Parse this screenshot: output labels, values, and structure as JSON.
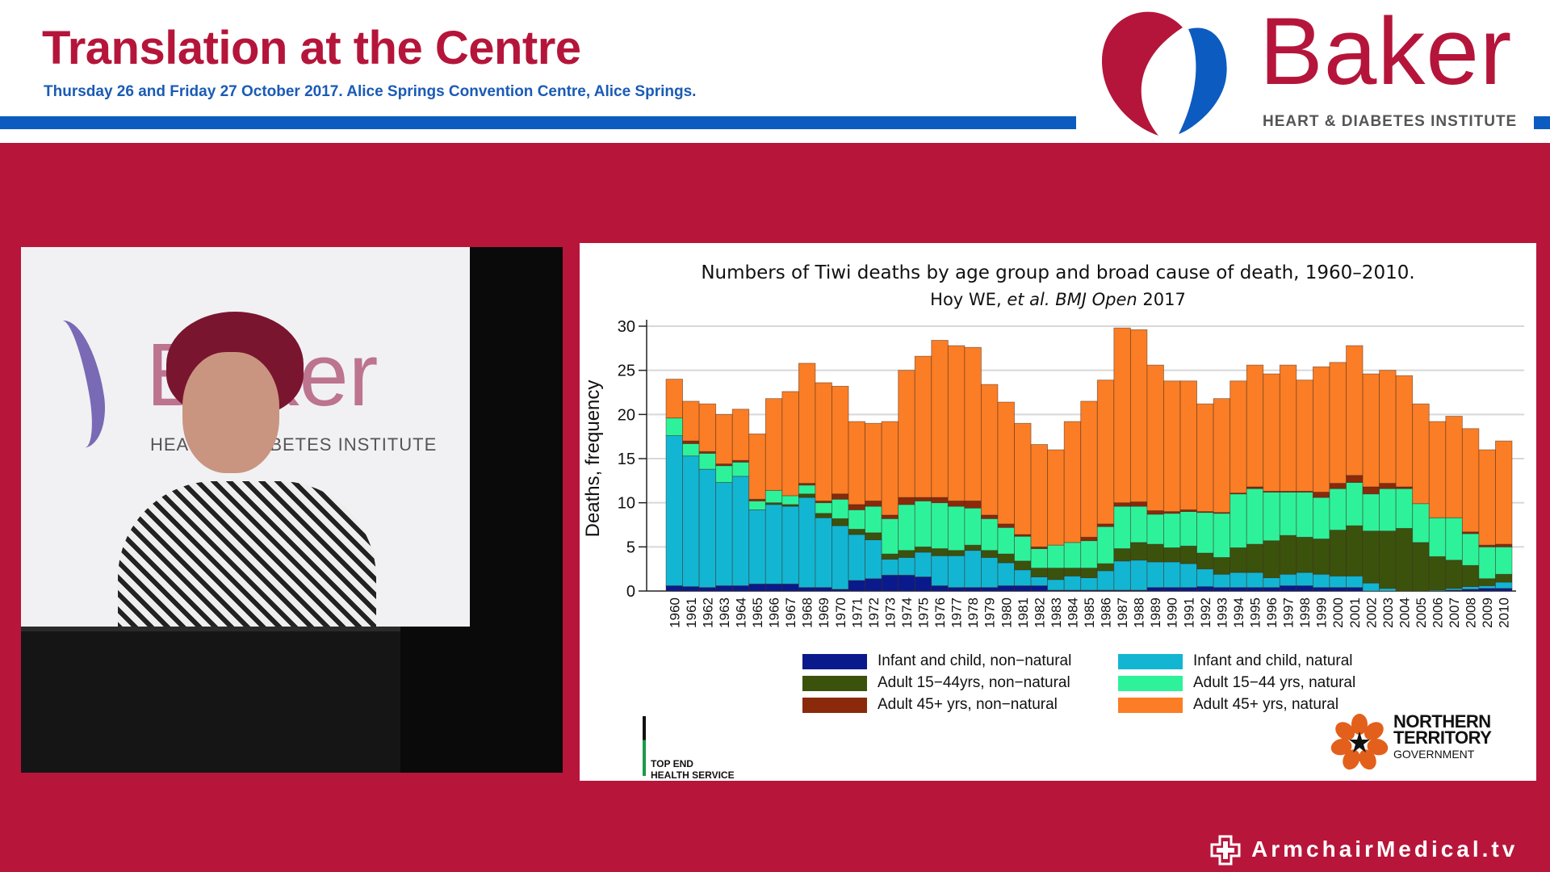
{
  "header": {
    "title": "Translation at the Centre",
    "subtitle": "Thursday 26 and Friday 27 October 2017. Alice Springs Convention Centre, Alice Springs.",
    "logo_word": "Baker",
    "logo_sub": "HEART & DIABETES INSTITUTE"
  },
  "colors": {
    "brand_red": "#b8153a",
    "brand_blue": "#0c5bc0"
  },
  "video": {
    "banner_word": "Baker",
    "banner_sub": "HEART & DIABETES INSTITUTE"
  },
  "slide": {
    "topend_logo": "TOP END\nHEALTH SERVICE",
    "nt_logo": {
      "line1": "NORTHERN",
      "line2": "TERRITORY",
      "line3": "GOVERNMENT"
    }
  },
  "footer": {
    "brand": "ArmchairMedical.tv",
    "icon": "medical-cross-icon"
  },
  "chart_data": {
    "type": "bar",
    "stacked": true,
    "title": "Numbers of Tiwi deaths by age group and broad cause of death, 1960–2010.",
    "subtitle_plain": "Hoy WE, ",
    "subtitle_italic": "et al. BMJ Open",
    "subtitle_year": " 2017",
    "xlabel": "",
    "ylabel": "Deaths, frequency",
    "ylim": [
      0,
      30
    ],
    "yticks": [
      0,
      5,
      10,
      15,
      20,
      25,
      30
    ],
    "grid": true,
    "legend_placement": "bottom",
    "categories": [
      "1960",
      "1961",
      "1962",
      "1963",
      "1964",
      "1965",
      "1966",
      "1967",
      "1968",
      "1969",
      "1970",
      "1971",
      "1972",
      "1973",
      "1974",
      "1975",
      "1976",
      "1977",
      "1978",
      "1979",
      "1980",
      "1981",
      "1982",
      "1983",
      "1984",
      "1985",
      "1986",
      "1987",
      "1988",
      "1989",
      "1990",
      "1991",
      "1992",
      "1993",
      "1994",
      "1995",
      "1996",
      "1997",
      "1998",
      "1999",
      "2000",
      "2001",
      "2002",
      "2003",
      "2004",
      "2005",
      "2006",
      "2007",
      "2008",
      "2009",
      "2010"
    ],
    "series": [
      {
        "name": "Infant and child, non−natural",
        "color": "#0a1a8c",
        "values": [
          0.6,
          0.5,
          0.4,
          0.6,
          0.6,
          0.8,
          0.8,
          0.8,
          0.4,
          0.4,
          0.2,
          1.2,
          1.4,
          1.8,
          1.8,
          1.6,
          0.6,
          0.4,
          0.4,
          0.4,
          0.6,
          0.6,
          0.6,
          0.1,
          0.1,
          0.1,
          0.1,
          0.1,
          0.1,
          0.4,
          0.4,
          0.4,
          0.5,
          0.4,
          0.4,
          0.4,
          0.4,
          0.6,
          0.6,
          0.4,
          0.4,
          0.4,
          0,
          0,
          0,
          0,
          0,
          0.1,
          0.2,
          0.3,
          0.3
        ]
      },
      {
        "name": "Infant and child, natural",
        "color": "#12b6d3",
        "values": [
          17.0,
          14.8,
          13.4,
          11.7,
          12.4,
          8.4,
          9.0,
          8.8,
          10.2,
          7.9,
          7.2,
          5.2,
          4.4,
          1.8,
          2.0,
          2.8,
          3.4,
          3.6,
          4.2,
          3.4,
          2.6,
          1.8,
          1.0,
          1.2,
          1.6,
          1.4,
          2.2,
          3.3,
          3.4,
          2.9,
          2.9,
          2.7,
          2.0,
          1.5,
          1.7,
          1.7,
          1.1,
          1.3,
          1.5,
          1.5,
          1.3,
          1.3,
          0.9,
          0.3,
          0,
          0,
          0.1,
          0.2,
          0.3,
          0.3,
          0.7
        ]
      },
      {
        "name": "Adult 15−44yrs, non−natural",
        "color": "#3b520c",
        "values": [
          0,
          0,
          0,
          0,
          0,
          0,
          0.2,
          0.2,
          0.4,
          0.5,
          0.8,
          0.6,
          0.8,
          0.6,
          0.8,
          0.6,
          0.8,
          0.6,
          0.6,
          0.8,
          1.0,
          1.0,
          1.0,
          1.3,
          0.9,
          1.1,
          0.8,
          1.4,
          2.0,
          2.0,
          1.6,
          2.0,
          1.8,
          1.9,
          2.8,
          3.2,
          4.2,
          4.4,
          4.0,
          4.0,
          5.2,
          5.7,
          5.9,
          6.5,
          7.1,
          5.5,
          3.8,
          3.2,
          2.4,
          0.8,
          0.9
        ]
      },
      {
        "name": "Adult 15−44 yrs, natural",
        "color": "#2ef29a",
        "values": [
          2.0,
          1.4,
          1.8,
          1.9,
          1.6,
          1.0,
          1.4,
          1.0,
          1.0,
          1.2,
          2.2,
          2.2,
          3.0,
          4.0,
          5.2,
          5.2,
          5.2,
          5.0,
          4.2,
          3.6,
          3.0,
          2.8,
          2.2,
          2.6,
          2.9,
          3.1,
          4.2,
          4.8,
          4.1,
          3.4,
          3.9,
          3.9,
          4.6,
          5.0,
          6.1,
          6.3,
          5.5,
          4.9,
          5.1,
          4.7,
          4.7,
          4.9,
          4.2,
          4.8,
          4.5,
          4.4,
          4.4,
          4.8,
          3.6,
          3.6,
          3.1
        ]
      },
      {
        "name": "Adult 45+ yrs, non−natural",
        "color": "#8a2a0a",
        "values": [
          0,
          0.3,
          0.2,
          0.2,
          0.2,
          0.2,
          0,
          0,
          0.2,
          0.2,
          0.6,
          0.6,
          0.6,
          0.4,
          0.8,
          0.4,
          0.6,
          0.6,
          0.8,
          0.4,
          0.4,
          0.2,
          0.2,
          0,
          0,
          0.4,
          0.3,
          0.4,
          0.5,
          0.4,
          0.2,
          0.2,
          0.1,
          0.1,
          0.1,
          0.2,
          0.1,
          0.1,
          0.1,
          0.6,
          0.6,
          0.8,
          0.8,
          0.6,
          0.2,
          0,
          0,
          0,
          0.2,
          0.2,
          0.3
        ]
      },
      {
        "name": "Adult 45+ yrs, natural",
        "color": "#fb7d25",
        "values": [
          4.4,
          4.5,
          5.4,
          5.6,
          5.8,
          7.4,
          10.4,
          11.8,
          13.6,
          13.4,
          12.2,
          9.4,
          8.8,
          10.6,
          14.4,
          16.0,
          17.8,
          17.6,
          17.4,
          14.8,
          13.8,
          12.6,
          11.6,
          10.8,
          13.7,
          15.4,
          16.3,
          19.8,
          19.5,
          16.5,
          14.8,
          14.6,
          12.2,
          12.9,
          12.7,
          13.8,
          13.3,
          14.3,
          12.6,
          14.2,
          13.7,
          14.7,
          12.8,
          12.8,
          12.6,
          11.3,
          10.9,
          11.5,
          11.7,
          10.8,
          11.7
        ]
      }
    ]
  }
}
